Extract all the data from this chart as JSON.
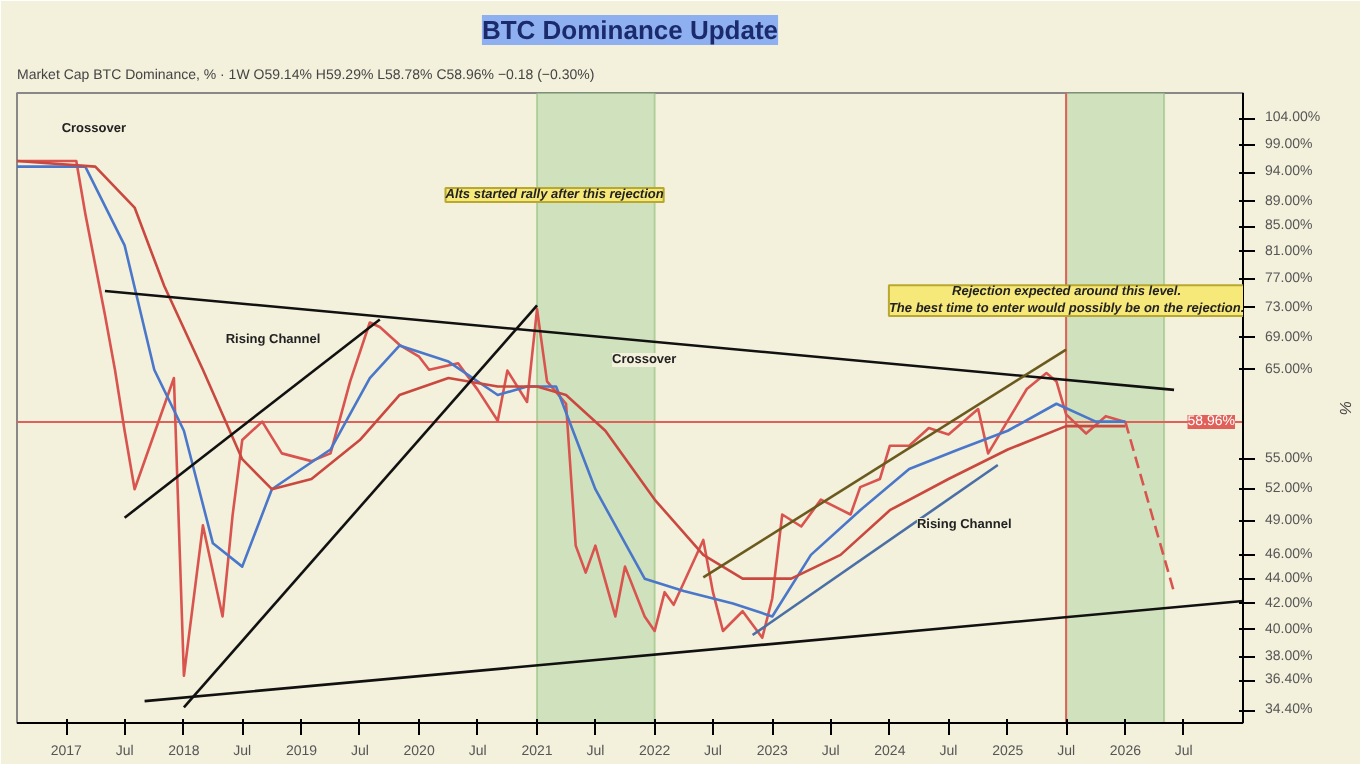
{
  "chart_data": {
    "type": "line",
    "title": "BTC Dominance Update",
    "ylabel": "%",
    "log": "y",
    "grid": false,
    "xlim": [
      "2016-08",
      "2027-01"
    ],
    "xticks": [
      {
        "value": "2017-01",
        "label": "2017"
      },
      {
        "value": "2017-07",
        "label": "Jul"
      },
      {
        "value": "2018-01",
        "label": "2018"
      },
      {
        "value": "2018-07",
        "label": "Jul"
      },
      {
        "value": "2019-01",
        "label": "2019"
      },
      {
        "value": "2019-07",
        "label": "Jul"
      },
      {
        "value": "2020-01",
        "label": "2020"
      },
      {
        "value": "2020-07",
        "label": "Jul"
      },
      {
        "value": "2021-01",
        "label": "2021"
      },
      {
        "value": "2021-07",
        "label": "Jul"
      },
      {
        "value": "2022-01",
        "label": "2022"
      },
      {
        "value": "2022-07",
        "label": "Jul"
      },
      {
        "value": "2023-01",
        "label": "2023"
      },
      {
        "value": "2023-07",
        "label": "Jul"
      },
      {
        "value": "2024-01",
        "label": "2024"
      },
      {
        "value": "2024-07",
        "label": "Jul"
      },
      {
        "value": "2025-01",
        "label": "2025"
      },
      {
        "value": "2025-07",
        "label": "Jul"
      },
      {
        "value": "2026-01",
        "label": "2026"
      },
      {
        "value": "2026-07",
        "label": "Jul"
      }
    ],
    "ylim": [
      33.6,
      109
    ],
    "yticks": [
      {
        "value": 34.4,
        "label": "34.40%"
      },
      {
        "value": 36.4,
        "label": "36.40%"
      },
      {
        "value": 38,
        "label": "38.00%"
      },
      {
        "value": 40,
        "label": "40.00%"
      },
      {
        "value": 42,
        "label": "42.00%"
      },
      {
        "value": 44,
        "label": "44.00%"
      },
      {
        "value": 46,
        "label": "46.00%"
      },
      {
        "value": 49,
        "label": "49.00%"
      },
      {
        "value": 52,
        "label": "52.00%"
      },
      {
        "value": 55,
        "label": "55.00%"
      },
      {
        "value": 65,
        "label": "65.00%"
      },
      {
        "value": 69,
        "label": "69.00%"
      },
      {
        "value": 73,
        "label": "73.00%"
      },
      {
        "value": 77,
        "label": "77.00%"
      },
      {
        "value": 81,
        "label": "81.00%"
      },
      {
        "value": 85,
        "label": "85.00%"
      },
      {
        "value": 89,
        "label": "89.00%"
      },
      {
        "value": 94,
        "label": "94.00%"
      },
      {
        "value": 99,
        "label": "99.00%"
      },
      {
        "value": 104,
        "label": "104.00%"
      }
    ],
    "series": [
      {
        "color": "#d9534f",
        "line_style": "solid",
        "x": [
          "2016-08",
          "2017-02",
          "2017-03",
          "2017-05",
          "2017-06",
          "2017-07",
          "2017-08",
          "2017-12",
          "2018-01",
          "2018-03",
          "2018-05",
          "2018-06",
          "2018-07",
          "2018-09",
          "2018-11",
          "2019-02",
          "2019-04",
          "2019-06",
          "2019-08",
          "2019-09",
          "2019-11",
          "2020-01",
          "2020-02",
          "2020-05",
          "2020-07",
          "2020-09",
          "2020-10",
          "2020-12",
          "2021-01",
          "2021-02",
          "2021-04",
          "2021-05",
          "2021-06",
          "2021-07",
          "2021-09",
          "2021-10",
          "2021-12",
          "2022-01",
          "2022-02",
          "2022-03",
          "2022-06",
          "2022-07",
          "2022-08",
          "2022-10",
          "2022-12",
          "2023-01",
          "2023-02",
          "2023-04",
          "2023-06",
          "2023-09",
          "2023-10",
          "2023-12",
          "2024-01",
          "2024-03",
          "2024-05",
          "2024-07",
          "2024-10",
          "2024-11",
          "2025-01",
          "2025-03",
          "2025-05",
          "2025-06",
          "2025-07",
          "2025-09",
          "2025-11",
          "2026-01"
        ],
        "values": [
          96,
          96,
          87,
          72,
          65,
          58,
          52,
          64,
          36.7,
          48.6,
          41,
          49.5,
          57,
          59,
          55.6,
          54.8,
          55.6,
          63.6,
          71,
          70.4,
          68.1,
          66.6,
          65,
          65.8,
          62.6,
          59.1,
          64.9,
          61.2,
          72.8,
          63.6,
          61,
          46.8,
          44.5,
          46.8,
          41,
          45,
          41,
          39.9,
          42.9,
          41.9,
          47.3,
          42.9,
          39.9,
          41.4,
          39.4,
          42.4,
          49.6,
          48.5,
          51,
          49.6,
          52.2,
          53,
          56.4,
          56.4,
          58.3,
          57.6,
          60.4,
          55.6,
          59.1,
          62.7,
          64.6,
          63.6,
          59.8,
          57.7,
          59.6,
          58.96
        ]
      },
      {
        "color": "#d9534f",
        "line_style": "dashed",
        "x": [
          "2026-01",
          "2026-06"
        ],
        "values": [
          58.96,
          42.9
        ]
      },
      {
        "color": "#4a77c9",
        "line_style": "solid",
        "x": [
          "2016-08",
          "2017-03",
          "2017-07",
          "2017-10",
          "2018-01",
          "2018-04",
          "2018-07",
          "2018-10",
          "2019-01",
          "2019-04",
          "2019-08",
          "2019-11",
          "2020-04",
          "2020-09",
          "2020-12",
          "2021-03",
          "2021-07",
          "2021-12",
          "2022-04",
          "2022-09",
          "2023-01",
          "2023-05",
          "2023-10",
          "2024-03",
          "2024-08",
          "2025-01",
          "2025-06",
          "2025-10",
          "2026-01"
        ],
        "values": [
          95,
          95,
          82,
          65,
          58,
          47,
          45,
          52,
          54,
          56,
          64,
          68,
          66,
          62,
          63,
          63,
          52,
          44,
          43,
          42,
          41,
          46,
          50,
          54,
          56,
          58,
          61,
          59,
          59
        ]
      },
      {
        "color": "#c9483f",
        "line_style": "solid",
        "x": [
          "2016-08",
          "2017-04",
          "2017-08",
          "2017-11",
          "2018-03",
          "2018-07",
          "2018-10",
          "2019-02",
          "2019-07",
          "2019-11",
          "2020-04",
          "2020-09",
          "2021-01",
          "2021-04",
          "2021-08",
          "2022-01",
          "2022-06",
          "2022-10",
          "2023-03",
          "2023-08",
          "2024-01",
          "2024-07",
          "2025-01",
          "2025-07",
          "2026-01"
        ],
        "values": [
          96,
          95,
          88,
          76,
          65,
          55,
          52,
          53,
          57,
          62,
          64,
          63,
          63,
          62,
          58,
          51,
          46,
          44,
          44,
          46,
          50,
          53,
          56,
          58.5,
          58.5
        ]
      },
      {
        "color": "#111111",
        "line_style": "solid",
        "x": [
          "2017-05",
          "2026-06"
        ],
        "values": [
          75.3,
          62.6
        ]
      },
      {
        "color": "#111111",
        "line_style": "solid",
        "x": [
          "2017-09",
          "2027-01"
        ],
        "values": [
          35,
          42.2
        ]
      },
      {
        "color": "#111111",
        "line_style": "solid",
        "x": [
          "2018-01",
          "2021-01"
        ],
        "values": [
          34.6,
          73.3
        ]
      },
      {
        "color": "#111111",
        "line_style": "solid",
        "x": [
          "2017-07",
          "2019-09"
        ],
        "values": [
          49.3,
          71.4
        ]
      },
      {
        "color": "#6b5a1e",
        "line_style": "solid",
        "x": [
          "2022-06",
          "2025-07"
        ],
        "values": [
          44.1,
          67.5
        ]
      },
      {
        "color": "#4a6fa5",
        "line_style": "solid",
        "x": [
          "2022-11",
          "2024-12"
        ],
        "values": [
          39.6,
          54.4
        ]
      }
    ],
    "bands": [
      {
        "axis": "x",
        "from": "2021-01",
        "to": "2022-01",
        "color": "#b9d9a8"
      },
      {
        "axis": "x",
        "from": "2025-07",
        "to": "2026-05",
        "color": "#b9d9a8"
      }
    ],
    "ref_lines": [
      {
        "axis": "x",
        "value": "2025-07",
        "color": "#e0605a"
      },
      {
        "axis": "y",
        "value": 58.96,
        "label": "58.96%",
        "color": "#e0605a"
      }
    ],
    "annotations": [
      "Market Cap BTC Dominance, % · 1W  O59.14% H59.29% L58.78% C58.96% −0.18 (−0.30%)",
      "Crossover",
      "Crossover",
      "Rising Channel",
      "Rising Channel",
      "Alts started rally after this rejection",
      "Rejection expected around this level.\nThe best time to enter would possibly be on the rejection."
    ]
  }
}
